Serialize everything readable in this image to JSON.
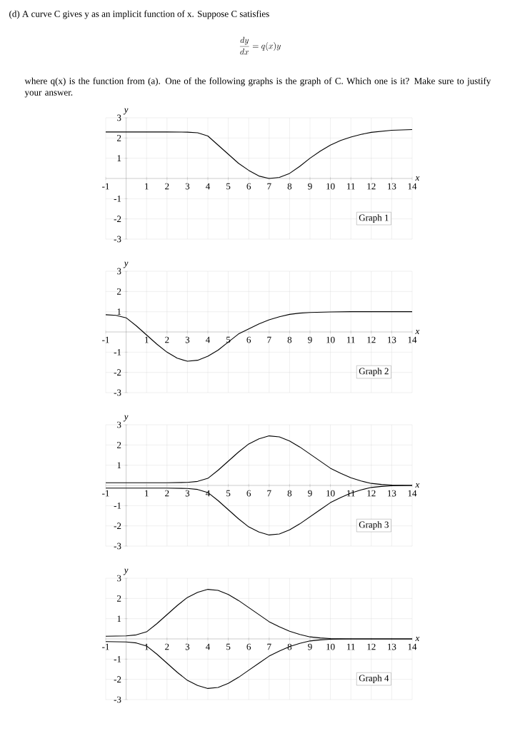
{
  "chart_data": [
    {
      "type": "line",
      "title": "(d) A curve C gives y as an implicit function of x. Suppose C satisfies",
      "subtitle": "\\frac{dy}{dx} = q(x)y",
      "annotations": [
        "where q(x) is the function from (a). One of the following graphs is the graph of C. Which one is it? Make sure to justify your answer.",
        "Graph 1"
      ],
      "xlabel": "x",
      "ylabel": "y",
      "xlim": [
        -1,
        14
      ],
      "ylim": [
        -3,
        3
      ],
      "xticks": [
        -1,
        1,
        2,
        3,
        4,
        5,
        6,
        7,
        8,
        9,
        10,
        11,
        12,
        13,
        14
      ],
      "yticks": [
        -3,
        -2,
        -1,
        1,
        2,
        3
      ],
      "grid": true,
      "line_style": "solid",
      "series": [
        {
          "color": "#000000",
          "x": [
            -1,
            0,
            1,
            2,
            3,
            3.5,
            4,
            4.5,
            5,
            5.5,
            6,
            6.5,
            7,
            7.5,
            8,
            8.5,
            9,
            9.5,
            10,
            10.5,
            11,
            11.5,
            12,
            13,
            14
          ],
          "values": [
            2.3,
            2.3,
            2.3,
            2.3,
            2.29,
            2.26,
            2.1,
            1.65,
            1.2,
            0.75,
            0.4,
            0.12,
            0,
            0.05,
            0.25,
            0.6,
            1.0,
            1.35,
            1.65,
            1.88,
            2.05,
            2.18,
            2.28,
            2.38,
            2.42
          ]
        }
      ]
    },
    {
      "type": "line",
      "annotations": [
        "Graph 2"
      ],
      "xlabel": "x",
      "ylabel": "y",
      "xlim": [
        -1,
        14
      ],
      "ylim": [
        -3,
        3
      ],
      "xticks": [
        -1,
        1,
        2,
        3,
        4,
        5,
        6,
        7,
        8,
        9,
        10,
        11,
        12,
        13,
        14
      ],
      "yticks": [
        -3,
        -2,
        -1,
        1,
        2,
        3
      ],
      "grid": true,
      "line_style": "solid",
      "series": [
        {
          "color": "#000000",
          "x": [
            -1,
            -0.5,
            0,
            0.5,
            1,
            1.5,
            2,
            2.5,
            3,
            3.5,
            4,
            4.5,
            5,
            5.5,
            6,
            6.5,
            7,
            7.5,
            8,
            8.5,
            9,
            10,
            11,
            12,
            14
          ],
          "values": [
            0.85,
            0.82,
            0.7,
            0.3,
            -0.15,
            -0.6,
            -1.0,
            -1.3,
            -1.45,
            -1.4,
            -1.2,
            -0.9,
            -0.5,
            -0.1,
            0.15,
            0.4,
            0.6,
            0.75,
            0.87,
            0.93,
            0.96,
            0.99,
            1,
            1,
            1
          ]
        }
      ]
    },
    {
      "type": "line",
      "annotations": [
        "Graph 3"
      ],
      "xlabel": "x",
      "ylabel": "y",
      "xlim": [
        -1,
        14
      ],
      "ylim": [
        -3,
        3
      ],
      "xticks": [
        -1,
        1,
        2,
        3,
        4,
        5,
        6,
        7,
        8,
        9,
        10,
        11,
        12,
        13,
        14
      ],
      "yticks": [
        -3,
        -2,
        -1,
        1,
        2,
        3
      ],
      "grid": true,
      "line_style": "solid",
      "series": [
        {
          "color": "#000000",
          "x": [
            -1,
            0,
            1,
            2,
            3,
            3.5,
            4,
            4.5,
            5,
            5.5,
            6,
            6.5,
            7,
            7.5,
            8,
            8.5,
            9,
            9.5,
            10,
            10.5,
            11,
            11.5,
            12,
            12.5,
            13,
            14
          ],
          "values": [
            0.13,
            0.13,
            0.13,
            0.13,
            0.15,
            0.2,
            0.35,
            0.75,
            1.2,
            1.65,
            2.05,
            2.3,
            2.45,
            2.4,
            2.2,
            1.9,
            1.55,
            1.2,
            0.85,
            0.6,
            0.38,
            0.22,
            0.1,
            0.05,
            0.02,
            0
          ]
        },
        {
          "color": "#000000",
          "x": [
            -1,
            0,
            1,
            2,
            3,
            3.5,
            4,
            4.5,
            5,
            5.5,
            6,
            6.5,
            7,
            7.5,
            8,
            8.5,
            9,
            9.5,
            10,
            10.5,
            11,
            11.5,
            12,
            12.5,
            13,
            14
          ],
          "values": [
            -0.13,
            -0.13,
            -0.13,
            -0.13,
            -0.15,
            -0.2,
            -0.35,
            -0.75,
            -1.2,
            -1.65,
            -2.05,
            -2.3,
            -2.45,
            -2.4,
            -2.2,
            -1.9,
            -1.55,
            -1.2,
            -0.85,
            -0.6,
            -0.38,
            -0.22,
            -0.1,
            -0.05,
            -0.02,
            0
          ]
        }
      ]
    },
    {
      "type": "line",
      "annotations": [
        "Graph 4"
      ],
      "xlabel": "x",
      "ylabel": "y",
      "xlim": [
        -1,
        14
      ],
      "ylim": [
        -3,
        3
      ],
      "xticks": [
        -1,
        1,
        2,
        3,
        4,
        5,
        6,
        7,
        8,
        9,
        10,
        11,
        12,
        13,
        14
      ],
      "yticks": [
        -3,
        -2,
        -1,
        1,
        2,
        3
      ],
      "grid": true,
      "line_style": "solid",
      "series": [
        {
          "color": "#000000",
          "x": [
            -1,
            0,
            0.5,
            1,
            1.5,
            2,
            2.5,
            3,
            3.5,
            4,
            4.5,
            5,
            5.5,
            6,
            6.5,
            7,
            7.5,
            8,
            8.5,
            9,
            9.5,
            10,
            11,
            14
          ],
          "values": [
            0.13,
            0.15,
            0.2,
            0.35,
            0.75,
            1.2,
            1.65,
            2.05,
            2.3,
            2.45,
            2.4,
            2.2,
            1.9,
            1.55,
            1.2,
            0.85,
            0.6,
            0.38,
            0.22,
            0.1,
            0.05,
            0.02,
            0,
            0
          ]
        },
        {
          "color": "#000000",
          "x": [
            -1,
            0,
            0.5,
            1,
            1.5,
            2,
            2.5,
            3,
            3.5,
            4,
            4.5,
            5,
            5.5,
            6,
            6.5,
            7,
            7.5,
            8,
            8.5,
            9,
            9.5,
            10,
            11,
            14
          ],
          "values": [
            -0.13,
            -0.15,
            -0.2,
            -0.35,
            -0.75,
            -1.2,
            -1.65,
            -2.05,
            -2.3,
            -2.45,
            -2.4,
            -2.2,
            -1.9,
            -1.55,
            -1.2,
            -0.85,
            -0.6,
            -0.38,
            -0.22,
            -0.1,
            -0.05,
            -0.02,
            0,
            0
          ]
        }
      ]
    }
  ]
}
